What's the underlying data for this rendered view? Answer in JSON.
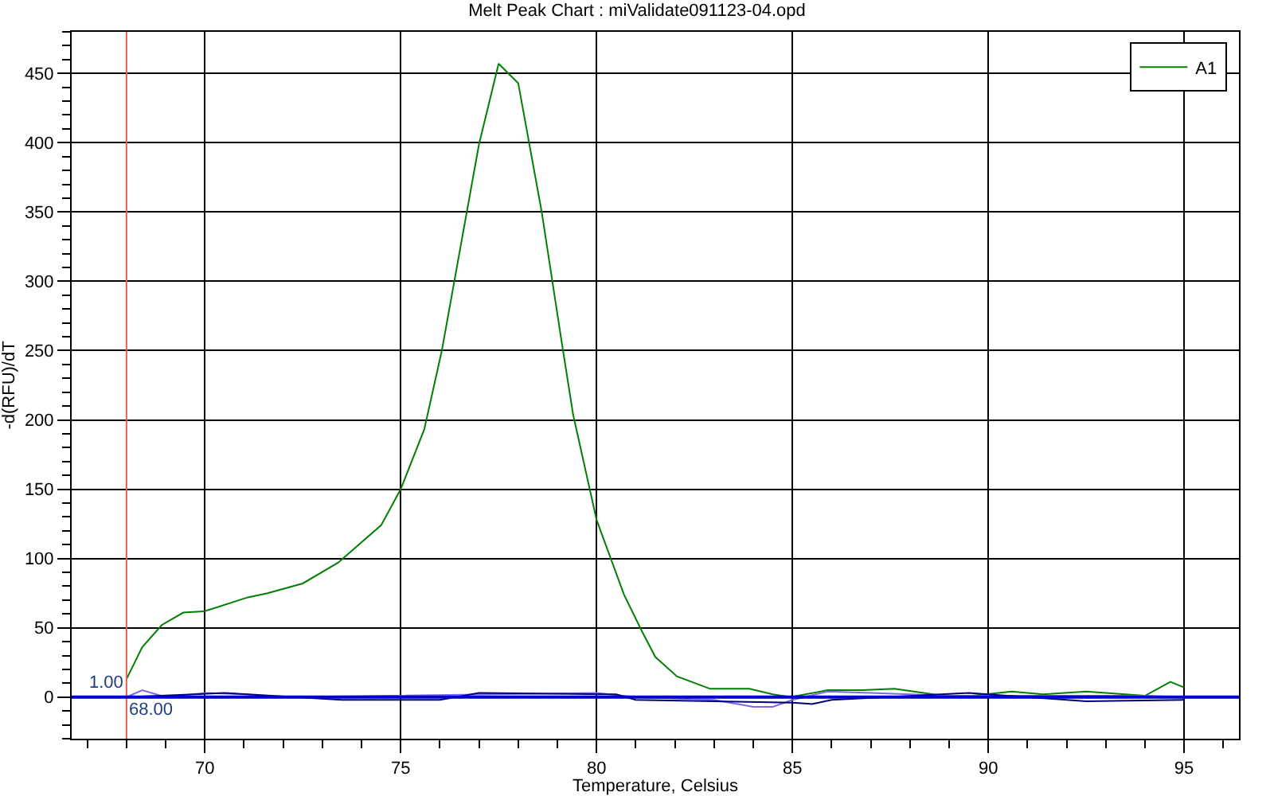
{
  "chart_data": {
    "type": "line",
    "title": "Melt Peak Chart : miValidate091123-04.opd",
    "xlabel": "Temperature, Celsius",
    "ylabel": "-d(RFU)/dT",
    "x": [
      68.0,
      68.4,
      68.9,
      69.45,
      70.0,
      71.1,
      71.6,
      72.5,
      73.4,
      74.5,
      75.0,
      75.6,
      76.05,
      77.0,
      77.5,
      78.0,
      78.6,
      79.1,
      79.4,
      80.0,
      80.7,
      81.15,
      81.5,
      82.05,
      82.9,
      83.9,
      84.5,
      84.95,
      85.9,
      86.8,
      87.6,
      88.6,
      89.25,
      90.6,
      91.4,
      92.5,
      94.0,
      94.65,
      95.0
    ],
    "series": [
      {
        "name": "A1",
        "color": "#008000",
        "values": [
          13,
          36,
          52,
          61,
          62,
          72,
          75,
          82,
          97,
          124,
          150,
          193,
          250,
          399,
          457,
          443,
          350,
          258,
          204,
          128,
          74,
          48,
          29,
          15,
          6,
          6,
          2,
          0,
          5,
          5,
          6,
          2,
          0,
          4,
          2,
          4,
          1,
          11,
          7
        ]
      },
      {
        "color": "#7b68ee",
        "x": [
          68.0,
          68.4,
          69.0,
          70.0,
          71.0,
          72.0,
          80.0,
          81.0,
          83.0,
          84.0,
          84.5,
          85.0,
          85.9,
          87.0,
          89.0,
          92.0,
          94.0,
          95.0
        ],
        "values": [
          0,
          5,
          0,
          3,
          2,
          0,
          3,
          0,
          -2,
          -7,
          -7,
          -2,
          4,
          3,
          1,
          1,
          1,
          0
        ]
      },
      {
        "color": "#000080",
        "x": [
          68.0,
          70.5,
          73.5,
          76.0,
          77.0,
          80.5,
          81.0,
          85.0,
          85.5,
          86.0,
          89.5,
          92.5,
          95.0
        ],
        "values": [
          0,
          3,
          -2,
          -2,
          3,
          2,
          -2,
          -4,
          -5,
          -2,
          3,
          -3,
          -2
        ]
      }
    ],
    "xlim": [
      66.6,
      96.4
    ],
    "xticks": [
      70,
      75,
      80,
      85,
      90,
      95
    ],
    "ylim": [
      -30,
      480
    ],
    "yticks": [
      0,
      50,
      100,
      150,
      200,
      250,
      300,
      350,
      400,
      450
    ],
    "ref_lines": [
      {
        "axis": "x",
        "value": 68,
        "label": "68.00",
        "color": "#e8604c"
      },
      {
        "axis": "y",
        "value": 0,
        "color": "#0000cd"
      }
    ],
    "annotations": [
      {
        "text": "1.00",
        "x": 68,
        "y": 1
      }
    ],
    "grid": true,
    "legend": "top right",
    "marker": "none",
    "line_style": "solid"
  }
}
